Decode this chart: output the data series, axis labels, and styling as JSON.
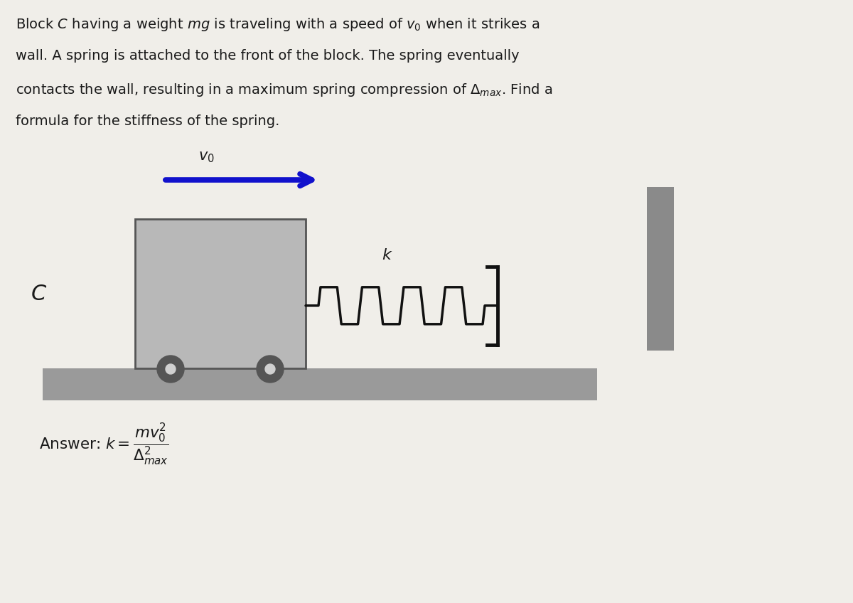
{
  "bg_color": "#f0eee9",
  "text_color": "#1a1a1a",
  "problem_text_lines": [
    "Block $C$ having a weight $mg$ is traveling with a speed of $v_0$ when it strikes a",
    "wall. A spring is attached to the front of the block. The spring eventually",
    "contacts the wall, resulting in a maximum spring compression of $\\Delta_{max}$. Find a",
    "formula for the stiffness of the spring."
  ],
  "block_color": "#b8b8b8",
  "block_border_color": "#555555",
  "ground_color": "#9a9a9a",
  "wall_color": "#8a8a8a",
  "arrow_color": "#1111cc",
  "spring_color": "#111111",
  "wheel_color": "#555555",
  "wheel_highlight": "#d0d0d0",
  "label_C": "$C$",
  "label_v0": "$v_0$",
  "label_k": "$k$",
  "figsize": [
    12.0,
    8.48
  ],
  "dpi": 100
}
